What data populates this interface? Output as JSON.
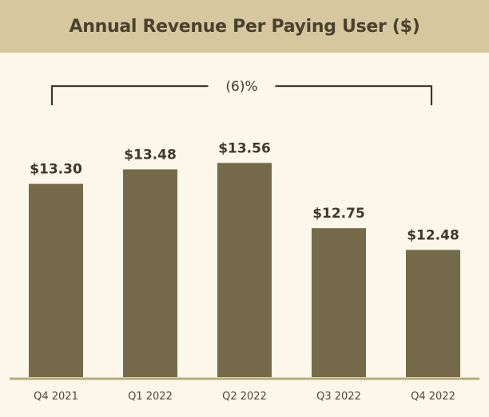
{
  "header": {
    "title": "Annual Revenue Per Paying User ($)"
  },
  "colors": {
    "bar": "#756b4a",
    "header_bg": "#d6c79e",
    "background": "#fdf6ea",
    "baseline": "#b6ac7a"
  },
  "annotation": {
    "label": "(6)%"
  },
  "chart_data": {
    "type": "bar",
    "title": "Annual Revenue Per Paying User ($)",
    "categories": [
      "Q4 2021",
      "Q1 2022",
      "Q2 2022",
      "Q3 2022",
      "Q4 2022"
    ],
    "values": [
      13.3,
      13.48,
      13.56,
      12.75,
      12.48
    ],
    "data_labels": [
      "$13.30",
      "$13.48",
      "$13.56",
      "$12.75",
      "$12.48"
    ],
    "xlabel": "",
    "ylabel": "",
    "ylim": [
      10.9,
      13.9
    ],
    "grid": false,
    "legend": "none",
    "annotations": [
      {
        "text": "(6)%",
        "from": "Q4 2021",
        "to": "Q4 2022"
      }
    ]
  }
}
